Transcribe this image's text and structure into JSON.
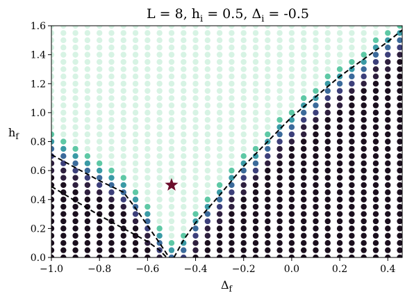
{
  "chart_data": {
    "type": "scatter",
    "title": "L = 8, h",
    "title_sub": "i",
    "title_rest": " = 0.5, Δ",
    "title_sub2": "i",
    "title_end": " = -0.5",
    "xlabel": "Δ",
    "xlabel_sub": "f",
    "ylabel": "h",
    "ylabel_sub": "f",
    "xlim": [
      -1.0,
      0.46
    ],
    "ylim": [
      0.0,
      1.6
    ],
    "x_ticks": [
      -1.0,
      -0.8,
      -0.6,
      -0.4,
      -0.2,
      0.0,
      0.2,
      0.4
    ],
    "x_tick_labels": [
      "−1.0",
      "−0.8",
      "−0.6",
      "−0.4",
      "−0.2",
      "0.0",
      "0.2",
      "0.4"
    ],
    "y_ticks": [
      0.0,
      0.2,
      0.4,
      0.6,
      0.8,
      1.0,
      1.2,
      1.4,
      1.6
    ],
    "y_tick_labels": [
      "0.0",
      "0.2",
      "0.4",
      "0.6",
      "0.8",
      "1.0",
      "1.2",
      "1.4",
      "1.6"
    ],
    "grid": false,
    "grid_x_start": -1.0,
    "grid_x_step": 0.05,
    "grid_y_start": 0.0,
    "grid_y_step": 0.05,
    "colormap": [
      "#1b0f1e",
      "#2e1f3e",
      "#3c3f7a",
      "#3b6a9a",
      "#3a9aa5",
      "#5ec8a5",
      "#d7f3e4"
    ],
    "marker": {
      "x": -0.5,
      "y": 0.5,
      "color": "#6b0d2c",
      "shape": "star"
    },
    "boundary_upper": [
      [
        -1.0,
        0.71
      ],
      [
        -0.9,
        0.62
      ],
      [
        -0.8,
        0.53
      ],
      [
        -0.7,
        0.45
      ],
      [
        -0.65,
        0.34
      ],
      [
        -0.6,
        0.22
      ],
      [
        -0.55,
        0.1
      ],
      [
        -0.51,
        0.0
      ]
    ],
    "boundary_lower": [
      [
        -1.0,
        0.49
      ],
      [
        -0.9,
        0.39
      ],
      [
        -0.8,
        0.29
      ],
      [
        -0.7,
        0.2
      ],
      [
        -0.6,
        0.11
      ],
      [
        -0.55,
        0.05
      ],
      [
        -0.52,
        0.0
      ]
    ],
    "boundary_right": [
      [
        -0.49,
        0.0
      ],
      [
        -0.45,
        0.12
      ],
      [
        -0.4,
        0.24
      ],
      [
        -0.3,
        0.43
      ],
      [
        -0.2,
        0.63
      ],
      [
        -0.1,
        0.8
      ],
      [
        0.0,
        0.97
      ],
      [
        0.1,
        1.11
      ],
      [
        0.2,
        1.25
      ],
      [
        0.3,
        1.37
      ],
      [
        0.4,
        1.49
      ],
      [
        0.46,
        1.57
      ]
    ]
  }
}
